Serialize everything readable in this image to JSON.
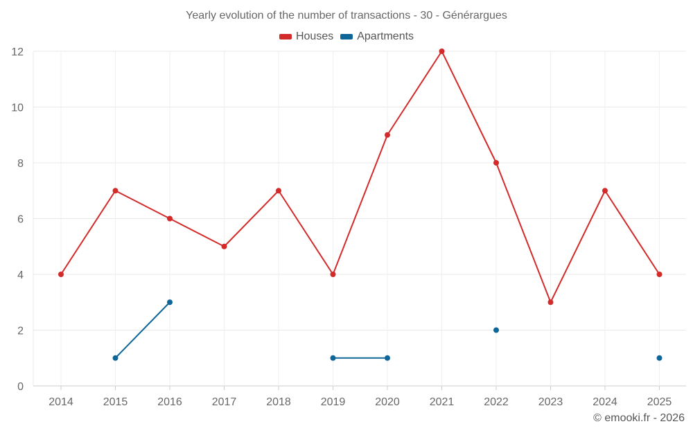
{
  "chart_data": {
    "type": "line",
    "title": "Yearly evolution of the number of transactions - 30 - Générargues",
    "categories": [
      "2014",
      "2015",
      "2016",
      "2017",
      "2018",
      "2019",
      "2020",
      "2021",
      "2022",
      "2023",
      "2024",
      "2025"
    ],
    "series": [
      {
        "name": "Houses",
        "color": "#d32a2a",
        "values": [
          4,
          7,
          6,
          5,
          7,
          4,
          9,
          12,
          8,
          3,
          7,
          4
        ]
      },
      {
        "name": "Apartments",
        "color": "#0e6698",
        "values": [
          null,
          1,
          3,
          null,
          null,
          1,
          1,
          null,
          2,
          null,
          null,
          1
        ]
      }
    ],
    "ylim": [
      0,
      12
    ],
    "yticks": [
      "0",
      "2",
      "4",
      "6",
      "8",
      "10",
      "12"
    ],
    "xlabel": "",
    "ylabel": "",
    "grid": true,
    "legend_position": "top-center"
  },
  "credit": "© emooki.fr - 2026"
}
